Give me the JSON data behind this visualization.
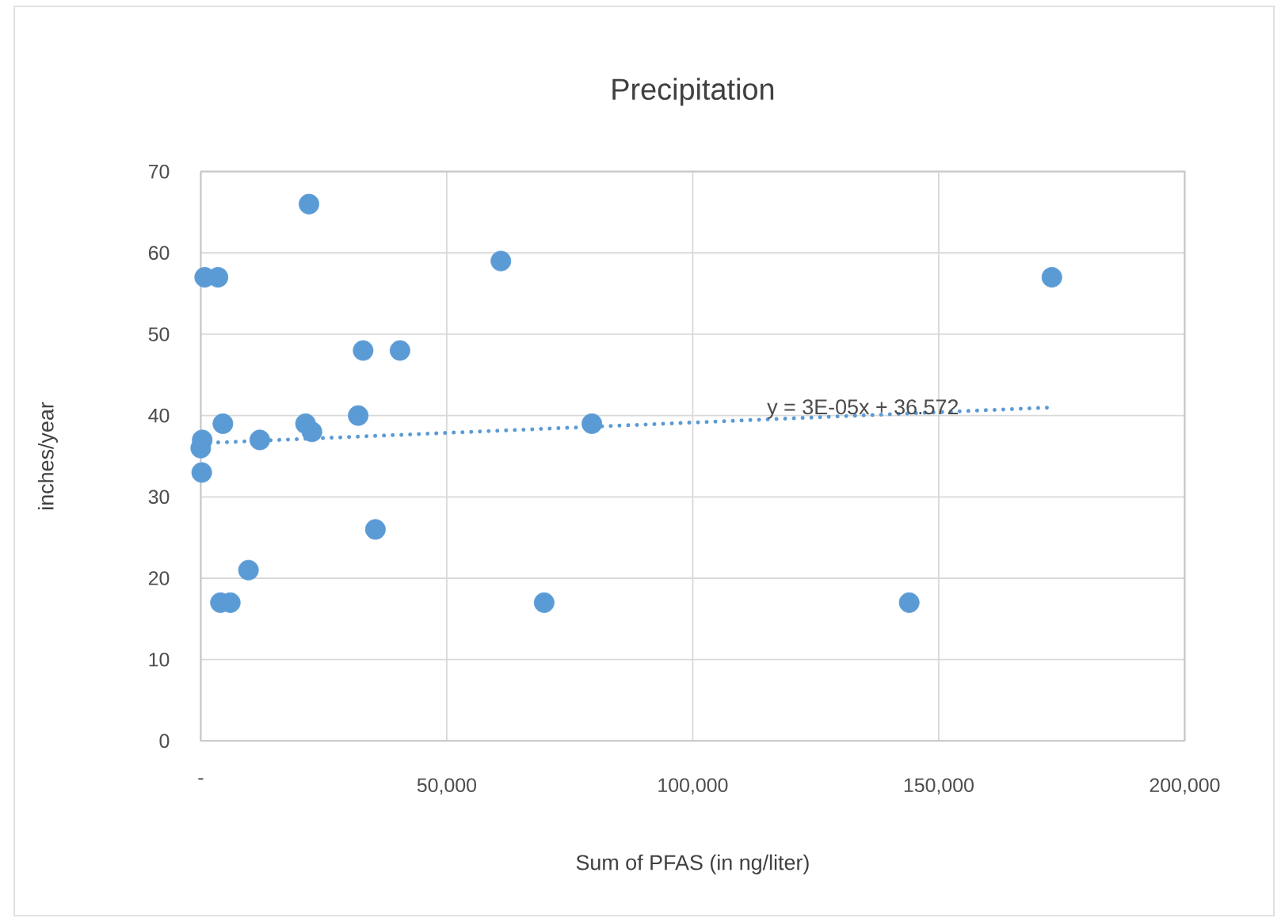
{
  "chart_data": {
    "type": "scatter",
    "title": "Precipitation",
    "xlabel": "Sum of PFAS (in ng/liter)",
    "ylabel": "inches/year",
    "series": [
      {
        "color": "#5b9bd5",
        "marker": "circle",
        "x": [
          22000,
          800,
          3500,
          61000,
          33000,
          40500,
          4500,
          21300,
          22600,
          32000,
          12000,
          300,
          0,
          200,
          79500,
          35500,
          9700,
          4000,
          6000,
          69800,
          144000,
          173000
        ],
        "values": [
          66,
          57,
          57,
          59,
          48,
          48,
          39,
          39,
          38,
          40,
          37,
          37,
          36,
          33,
          39,
          26,
          21,
          17,
          17,
          17,
          17,
          57
        ]
      },
      {
        "type": "line",
        "color": "#5b9bd5",
        "marker": "none",
        "line_style": "dotted",
        "x": [
          0,
          173000
        ],
        "values": [
          36.6,
          41
        ]
      }
    ],
    "xlim": [
      0,
      200000
    ],
    "ylim": [
      0,
      70
    ],
    "xticks": [
      {
        "value": 0,
        "label": "-"
      },
      {
        "value": 50000,
        "label": "50,000"
      },
      {
        "value": 100000,
        "label": "100,000"
      },
      {
        "value": 150000,
        "label": "150,000"
      },
      {
        "value": 200000,
        "label": "200,000"
      }
    ],
    "yticks": [
      0,
      10,
      20,
      30,
      40,
      50,
      60,
      70
    ],
    "grid": true,
    "annotations": [
      {
        "text": "y = 3E-05x + 36.572",
        "x": 134600,
        "y": 40.8
      }
    ]
  }
}
